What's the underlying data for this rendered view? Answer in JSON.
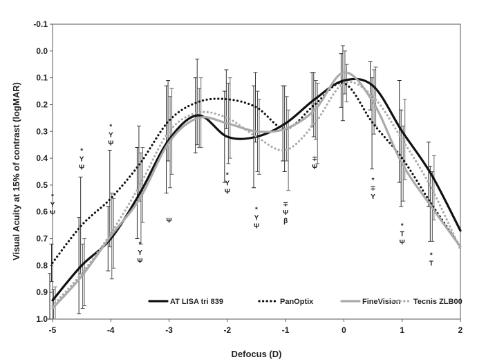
{
  "chart_data": {
    "type": "line",
    "xlabel": "Defocus (D)",
    "ylabel": "Visual Acuity at 15% of contrast (logMAR)",
    "xlim": [
      -5,
      2
    ],
    "ylim": [
      -0.1,
      1.0
    ],
    "y_inverted": true,
    "x_ticks": [
      "-5",
      "-4",
      "-3",
      "-2",
      "-1",
      "0",
      "1",
      "2"
    ],
    "y_ticks": [
      "-0.1",
      "0.0",
      "0.1",
      "0.2",
      "0.3",
      "0.4",
      "0.5",
      "0.6",
      "0.7",
      "0.8",
      "0.9",
      "1.0"
    ],
    "x_tick_values": [
      -5,
      -4,
      -3,
      -2,
      -1,
      0,
      1,
      2
    ],
    "y_tick_values": [
      -0.1,
      0.0,
      0.1,
      0.2,
      0.3,
      0.4,
      0.5,
      0.6,
      0.7,
      0.8,
      0.9,
      1.0
    ],
    "grid": false,
    "legend_position": "bottom-right",
    "series": [
      {
        "name": "AT LISA tri 839",
        "color": "#111111",
        "style": "solid",
        "x": [
          -5,
          -4.5,
          -4,
          -3.5,
          -3,
          -2.5,
          -2,
          -1.5,
          -1,
          -0.5,
          0,
          0.5,
          1,
          1.5,
          2
        ],
        "y": [
          0.93,
          0.8,
          0.7,
          0.53,
          0.33,
          0.24,
          0.32,
          0.32,
          0.27,
          0.18,
          0.11,
          0.13,
          0.3,
          0.46,
          0.67
        ]
      },
      {
        "name": "PanOptix",
        "color": "#111111",
        "style": "dotted",
        "x": [
          -5,
          -4.5,
          -4,
          -3.5,
          -3,
          -2.5,
          -2,
          -1.5,
          -1,
          -0.5,
          0,
          0.5,
          1,
          1.5,
          2
        ],
        "y": [
          0.79,
          0.65,
          0.55,
          0.42,
          0.26,
          0.19,
          0.18,
          0.21,
          0.29,
          0.2,
          0.12,
          0.27,
          0.4,
          0.57,
          0.73
        ]
      },
      {
        "name": "FineVision",
        "color": "#aaaaaa",
        "style": "solid",
        "x": [
          -5,
          -4.5,
          -4,
          -3.5,
          -3,
          -2.5,
          -2,
          -1.5,
          -1,
          -0.5,
          0,
          0.5,
          1,
          1.5,
          2
        ],
        "y": [
          0.96,
          0.84,
          0.69,
          0.55,
          0.34,
          0.25,
          0.27,
          0.3,
          0.29,
          0.22,
          0.08,
          0.19,
          0.42,
          0.58,
          0.73
        ]
      },
      {
        "name": "Tecnis ZLB00",
        "color": "#aaaaaa",
        "style": "dotted",
        "x": [
          -5,
          -4.5,
          -4,
          -3.5,
          -3,
          -2.5,
          -2,
          -1.5,
          -1,
          -0.5,
          0,
          0.5,
          1,
          1.5,
          2
        ],
        "y": [
          0.95,
          0.83,
          0.68,
          0.5,
          0.3,
          0.23,
          0.25,
          0.32,
          0.37,
          0.27,
          0.12,
          0.17,
          0.33,
          0.51,
          0.74
        ]
      }
    ],
    "error_bars": [
      {
        "x": -5,
        "series": [
          [
            0.83,
            1.0
          ],
          [
            0.72,
            0.86
          ],
          [
            0.89,
            1.0
          ],
          [
            0.88,
            1.0
          ]
        ]
      },
      {
        "x": -4.5,
        "series": [
          [
            0.62,
            0.98
          ],
          [
            0.47,
            0.83
          ],
          [
            0.72,
            0.96
          ],
          [
            0.7,
            0.95
          ]
        ]
      },
      {
        "x": -4,
        "series": [
          [
            0.58,
            0.82
          ],
          [
            0.37,
            0.73
          ],
          [
            0.53,
            0.85
          ],
          [
            0.55,
            0.81
          ]
        ]
      },
      {
        "x": -3.5,
        "series": [
          [
            0.36,
            0.7
          ],
          [
            0.28,
            0.56
          ],
          [
            0.38,
            0.72
          ],
          [
            0.36,
            0.64
          ]
        ]
      },
      {
        "x": -3,
        "series": [
          [
            0.13,
            0.53
          ],
          [
            0.11,
            0.41
          ],
          [
            0.17,
            0.51
          ],
          [
            0.14,
            0.46
          ]
        ]
      },
      {
        "x": -2.5,
        "series": [
          [
            0.1,
            0.38
          ],
          [
            0.03,
            0.35
          ],
          [
            0.14,
            0.36
          ],
          [
            0.1,
            0.36
          ]
        ]
      },
      {
        "x": -2,
        "series": [
          [
            0.15,
            0.49
          ],
          [
            0.07,
            0.29
          ],
          [
            0.12,
            0.42
          ],
          [
            0.1,
            0.4
          ]
        ]
      },
      {
        "x": -1.5,
        "series": [
          [
            0.13,
            0.51
          ],
          [
            0.08,
            0.34
          ],
          [
            0.15,
            0.45
          ],
          [
            0.18,
            0.46
          ]
        ]
      },
      {
        "x": -1,
        "series": [
          [
            0.13,
            0.41
          ],
          [
            0.13,
            0.45
          ],
          [
            0.17,
            0.41
          ],
          [
            0.22,
            0.52
          ]
        ]
      },
      {
        "x": -0.5,
        "series": [
          [
            0.08,
            0.28
          ],
          [
            0.08,
            0.32
          ],
          [
            0.11,
            0.33
          ],
          [
            0.12,
            0.42
          ]
        ]
      },
      {
        "x": 0,
        "series": [
          [
            0.01,
            0.21
          ],
          [
            -0.02,
            0.26
          ],
          [
            0.0,
            0.16
          ],
          [
            0.05,
            0.19
          ]
        ]
      },
      {
        "x": 0.5,
        "series": [
          [
            0.04,
            0.22
          ],
          [
            0.1,
            0.44
          ],
          [
            0.07,
            0.31
          ],
          [
            0.06,
            0.28
          ]
        ]
      },
      {
        "x": 1,
        "series": [
          [
            0.11,
            0.49
          ],
          [
            0.22,
            0.58
          ],
          [
            0.28,
            0.56
          ],
          [
            0.18,
            0.48
          ]
        ]
      },
      {
        "x": 1.5,
        "series": [
          [
            0.34,
            0.58
          ],
          [
            0.43,
            0.71
          ],
          [
            0.45,
            0.71
          ],
          [
            0.39,
            0.63
          ]
        ]
      }
    ],
    "annotations": [
      {
        "x": -5,
        "y": 0.55,
        "lines": [
          "*",
          "Υ",
          "Ψ"
        ]
      },
      {
        "x": -4.5,
        "y": 0.38,
        "lines": [
          "*",
          "Υ",
          "Ψ"
        ]
      },
      {
        "x": -4,
        "y": 0.29,
        "lines": [
          "*",
          "Υ",
          "Ψ"
        ]
      },
      {
        "x": -3.5,
        "y": 0.73,
        "lines": [
          "*",
          "Υ",
          "Ψ"
        ]
      },
      {
        "x": -3,
        "y": 0.64,
        "lines": [
          "Ψ"
        ]
      },
      {
        "x": -2,
        "y": 0.47,
        "lines": [
          "*",
          "Υ",
          "Ψ"
        ]
      },
      {
        "x": -1.5,
        "y": 0.6,
        "lines": [
          "*",
          "Υ",
          "Ψ"
        ]
      },
      {
        "x": -1,
        "y": 0.58,
        "lines": [
          "∓",
          "Ψ",
          "β"
        ]
      },
      {
        "x": -0.5,
        "y": 0.41,
        "lines": [
          "∓",
          "Ψ"
        ]
      },
      {
        "x": 0.5,
        "y": 0.49,
        "lines": [
          "*",
          "∓",
          "Υ"
        ]
      },
      {
        "x": 1,
        "y": 0.66,
        "lines": [
          "*",
          "Τ",
          "Ψ"
        ]
      },
      {
        "x": 1.5,
        "y": 0.77,
        "lines": [
          "*",
          "Τ"
        ]
      }
    ]
  }
}
